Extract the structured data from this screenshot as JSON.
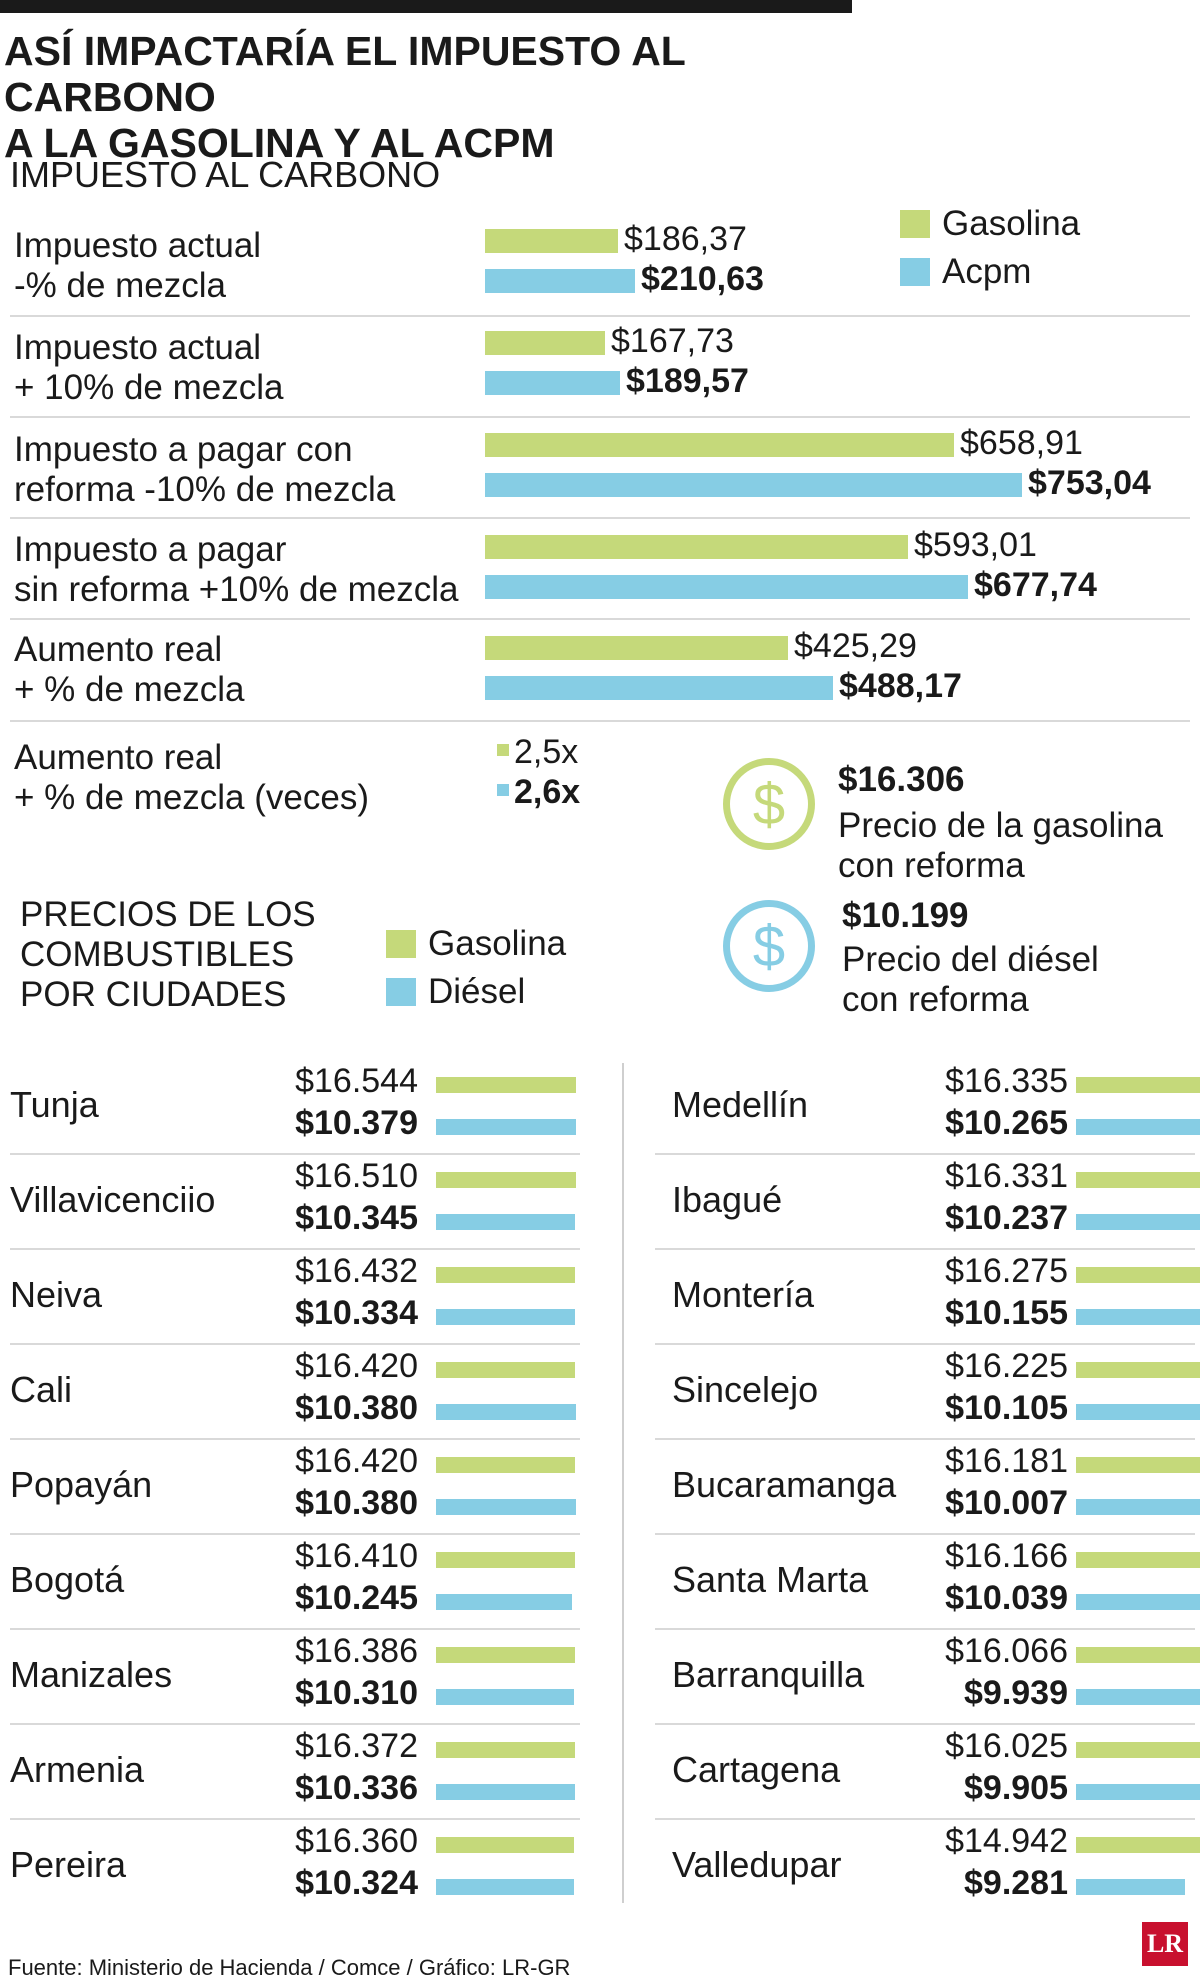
{
  "title_line1": "ASÍ IMPACTARÍA EL IMPUESTO AL CARBONO",
  "title_line2": "A LA GASOLINA Y AL ACPM",
  "section1_title": "IMPUESTO AL CARBONO",
  "legend1": {
    "gasolina": "Gasolina",
    "acpm": "Acpm"
  },
  "rows": [
    {
      "line1": "Impuesto actual",
      "line2": "-% de mezcla",
      "g_label": "$186,37",
      "b_label": "$210,63"
    },
    {
      "line1": "Impuesto actual",
      "line2": "+ 10% de mezcla",
      "g_label": "$167,73",
      "b_label": "$189,57"
    },
    {
      "line1": "Impuesto a pagar con",
      "line2": "reforma -10% de mezcla",
      "g_label": "$658,91",
      "b_label": "$753,04"
    },
    {
      "line1": "Impuesto a pagar",
      "line2": "sin reforma +10% de mezcla",
      "g_label": "$593,01",
      "b_label": "$677,74"
    },
    {
      "line1": "Aumento real",
      "line2": "+ % de mezcla",
      "g_label": "$425,29",
      "b_label": "$488,17"
    }
  ],
  "veces": {
    "line1": "Aumento real",
    "line2": "+ % de mezcla (veces)",
    "g_label": "2,5x",
    "b_label": "2,6x"
  },
  "price_gas": {
    "value": "$16.306",
    "line1": "Precio de la gasolina",
    "line2": "con reforma",
    "icon": "dollar-coin-icon",
    "color": "#c5d97a"
  },
  "price_diesel": {
    "value": "$10.199",
    "line1": "Precio del diésel",
    "line2": "con reforma",
    "icon": "dollar-coin-icon",
    "color": "#86cde4"
  },
  "section2": {
    "line1": "PRECIOS DE LOS",
    "line2": "COMBUSTIBLES",
    "line3": "POR CIUDADES"
  },
  "legend2": {
    "gasolina": "Gasolina",
    "diesel": "Diésel"
  },
  "cities_left": [
    {
      "name": "Tunja",
      "gas": "$16.544",
      "diesel": "$10.379"
    },
    {
      "name": "Villavicenciio",
      "gas": "$16.510",
      "diesel": "$10.345"
    },
    {
      "name": "Neiva",
      "gas": "$16.432",
      "diesel": "$10.334"
    },
    {
      "name": "Cali",
      "gas": "$16.420",
      "diesel": "$10.380"
    },
    {
      "name": "Popayán",
      "gas": "$16.420",
      "diesel": "$10.380"
    },
    {
      "name": "Bogotá",
      "gas": "$16.410",
      "diesel": "$10.245"
    },
    {
      "name": "Manizales",
      "gas": "$16.386",
      "diesel": "$10.310"
    },
    {
      "name": "Armenia",
      "gas": "$16.372",
      "diesel": "$10.336"
    },
    {
      "name": "Pereira",
      "gas": "$16.360",
      "diesel": "$10.324"
    }
  ],
  "cities_right": [
    {
      "name": "Medellín",
      "gas": "$16.335",
      "diesel": "$10.265"
    },
    {
      "name": "Ibagué",
      "gas": "$16.331",
      "diesel": "$10.237"
    },
    {
      "name": "Montería",
      "gas": "$16.275",
      "diesel": "$10.155"
    },
    {
      "name": "Sincelejo",
      "gas": "$16.225",
      "diesel": "$10.105"
    },
    {
      "name": "Bucaramanga",
      "gas": "$16.181",
      "diesel": "$10.007"
    },
    {
      "name": "Santa Marta",
      "gas": "$16.166",
      "diesel": "$10.039"
    },
    {
      "name": "Barranquilla",
      "gas": "$16.066",
      "diesel": "$9.939"
    },
    {
      "name": "Cartagena",
      "gas": "$16.025",
      "diesel": "$9.905"
    },
    {
      "name": "Valledupar",
      "gas": "$14.942",
      "diesel": "$9.281"
    }
  ],
  "source": "Fuente: Ministerio de Hacienda / Comce / Gráfico: LR-GR",
  "logo": "LR",
  "colors": {
    "gasolina": "#c5d97a",
    "acpm": "#86cde4"
  },
  "chart_data": [
    {
      "type": "bar",
      "title": "IMPUESTO AL CARBONO",
      "categories": [
        "Impuesto actual -% de mezcla",
        "Impuesto actual + 10% de mezcla",
        "Impuesto a pagar con reforma -10% de mezcla",
        "Impuesto a pagar sin reforma +10% de mezcla",
        "Aumento real + % de mezcla"
      ],
      "series": [
        {
          "name": "Gasolina",
          "values": [
            186.37,
            167.73,
            658.91,
            593.01,
            425.29
          ]
        },
        {
          "name": "Acpm",
          "values": [
            210.63,
            189.57,
            753.04,
            677.74,
            488.17
          ]
        }
      ],
      "orientation": "horizontal"
    },
    {
      "type": "bar",
      "title": "PRECIOS DE LOS COMBUSTIBLES POR CIUDADES",
      "categories": [
        "Tunja",
        "Villavicenciio",
        "Neiva",
        "Cali",
        "Popayán",
        "Bogotá",
        "Manizales",
        "Armenia",
        "Pereira",
        "Medellín",
        "Ibagué",
        "Montería",
        "Sincelejo",
        "Bucaramanga",
        "Santa Marta",
        "Barranquilla",
        "Cartagena",
        "Valledupar"
      ],
      "series": [
        {
          "name": "Gasolina",
          "values": [
            16544,
            16510,
            16432,
            16420,
            16420,
            16410,
            16386,
            16372,
            16360,
            16335,
            16331,
            16275,
            16225,
            16181,
            16166,
            16066,
            16025,
            14942
          ]
        },
        {
          "name": "Diésel",
          "values": [
            10379,
            10345,
            10334,
            10380,
            10380,
            10245,
            10310,
            10336,
            10324,
            10265,
            10237,
            10155,
            10105,
            10007,
            10039,
            9939,
            9905,
            9281
          ]
        }
      ],
      "orientation": "horizontal"
    }
  ]
}
